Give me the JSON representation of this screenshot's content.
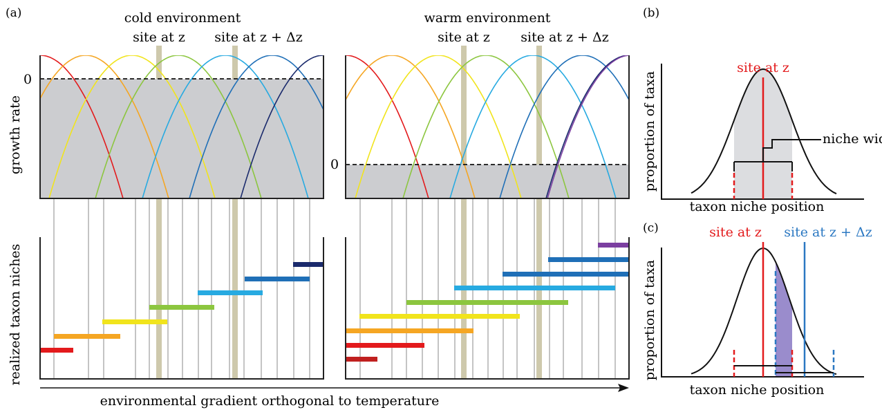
{
  "panels": {
    "a": "(a)",
    "b": "(b)",
    "c": "(c)"
  },
  "cold_title": "cold environment",
  "warm_title": "warm environment",
  "site_z": "site at z",
  "site_z_dz": "site at z + Δz",
  "growth_rate_label": "growth rate",
  "zero_tick": "0",
  "realized_niches_label": "realized taxon niches",
  "gradient_label": "environmental gradient orthogonal to temperature",
  "proportion_label": "proportion of taxa",
  "taxon_position_label": "taxon niche position",
  "niche_width_label": "niche width",
  "colors": {
    "taxa": [
      "#e31a1c",
      "#f5a623",
      "#f1e41c",
      "#8cc63f",
      "#27aae1",
      "#1f6fb7",
      "#1a2a6c",
      "#7b3fa0"
    ],
    "site_band": "#c5bf9d",
    "shade": "#cccdd0",
    "red_site": "#e31a1c",
    "blue_site": "#2b78c2"
  }
}
